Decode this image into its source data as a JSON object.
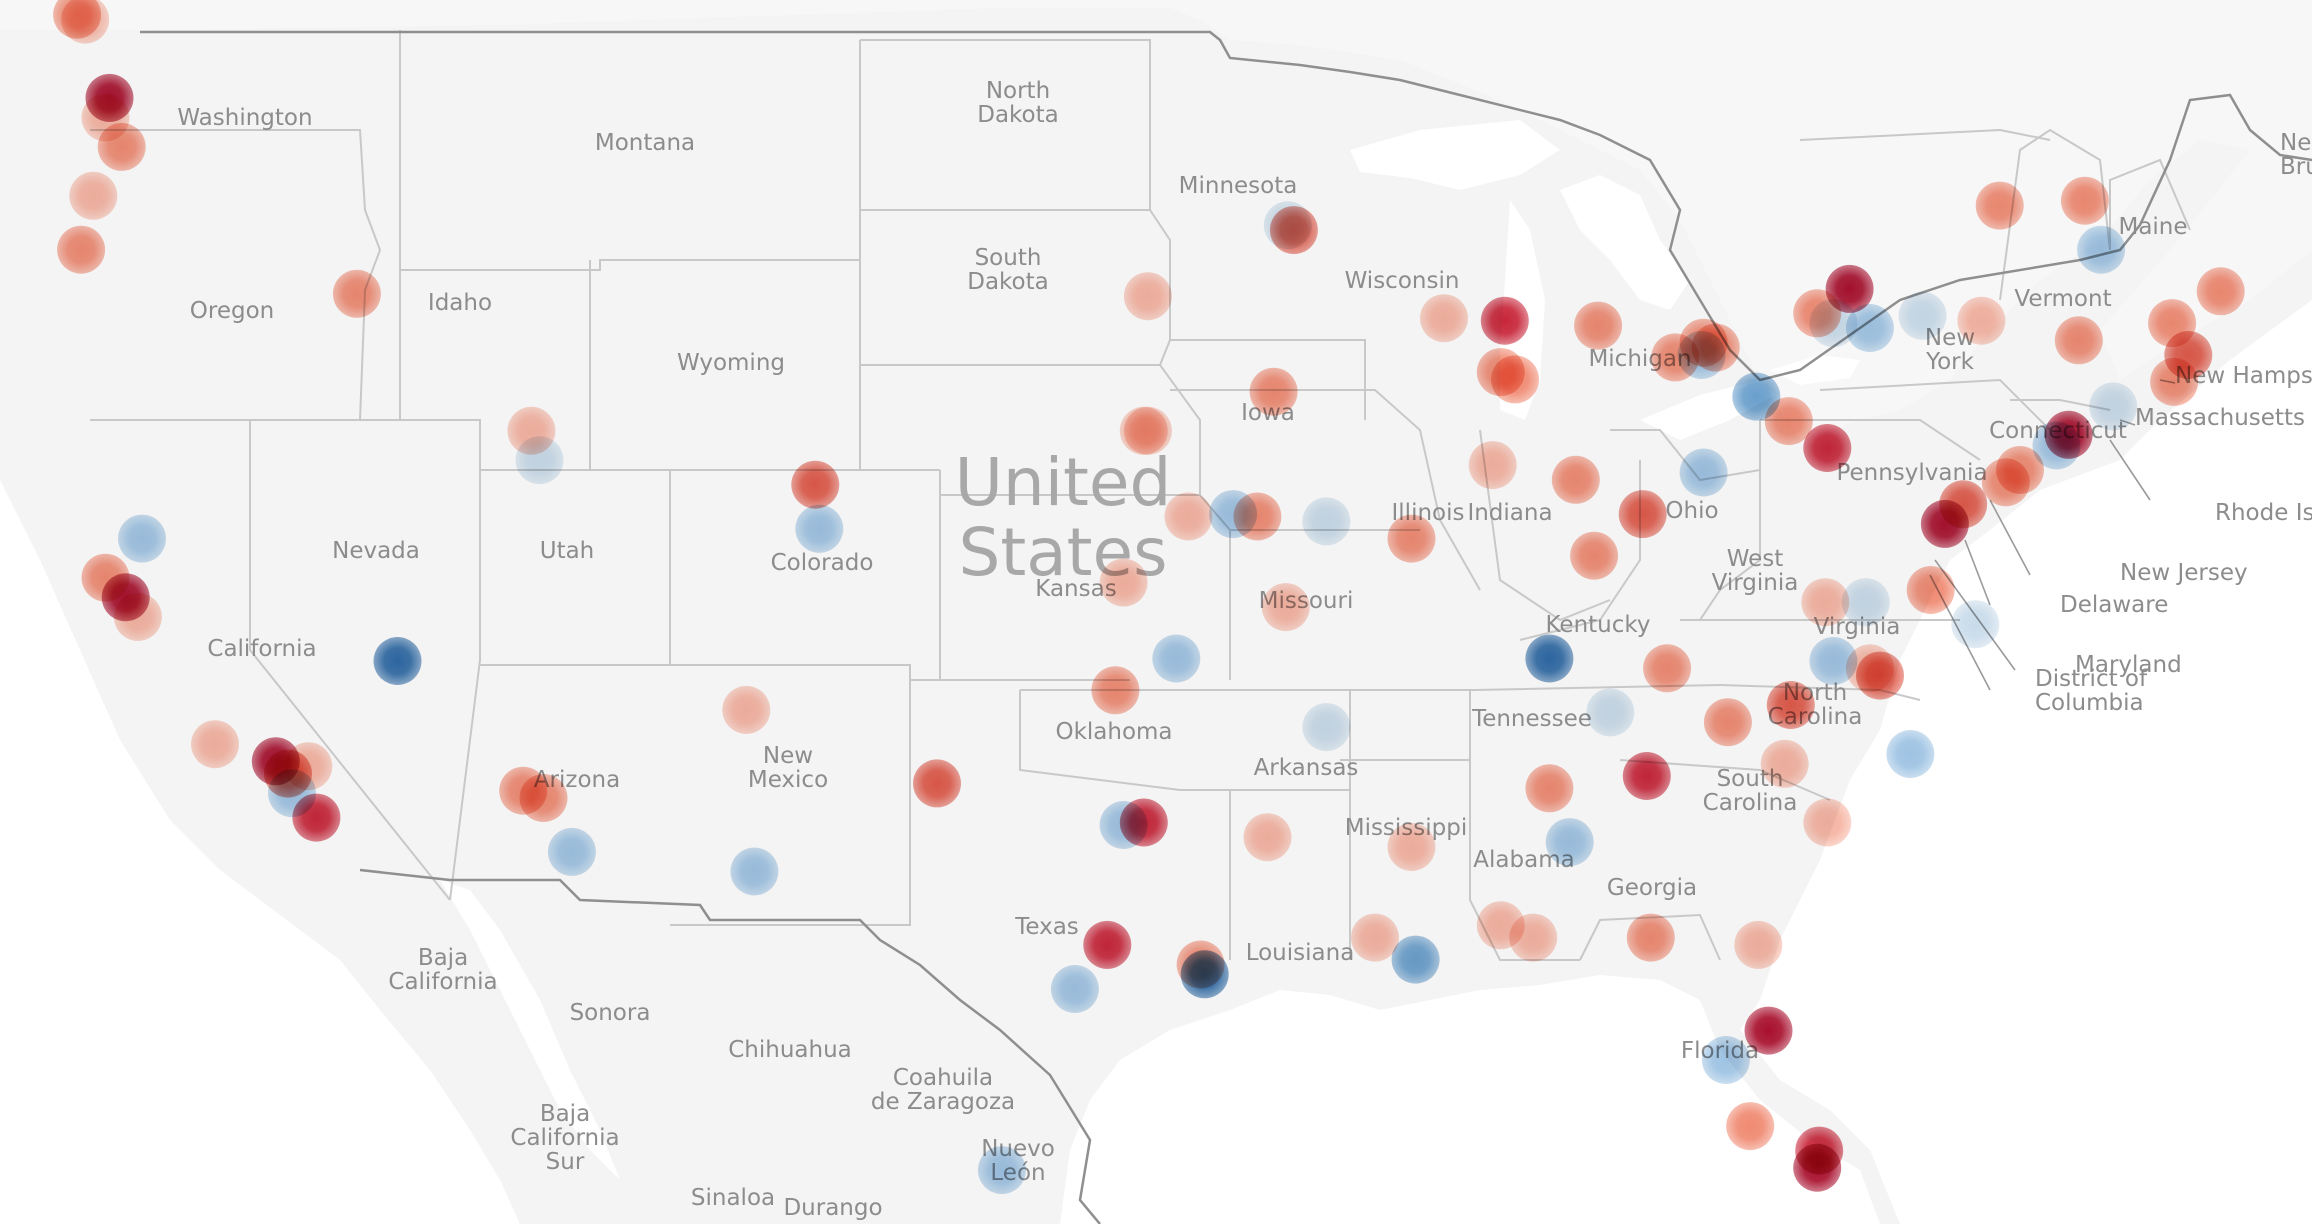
{
  "map": {
    "country_label_lines": [
      "United",
      "States"
    ],
    "state_labels": [
      {
        "name": "washington",
        "lines": [
          "Washington"
        ]
      },
      {
        "name": "oregon",
        "lines": [
          "Oregon"
        ]
      },
      {
        "name": "montana",
        "lines": [
          "Montana"
        ]
      },
      {
        "name": "north-dakota",
        "lines": [
          "North",
          "Dakota"
        ]
      },
      {
        "name": "minnesota",
        "lines": [
          "Minnesota"
        ]
      },
      {
        "name": "idaho",
        "lines": [
          "Idaho"
        ]
      },
      {
        "name": "south-dakota",
        "lines": [
          "South",
          "Dakota"
        ]
      },
      {
        "name": "wisconsin",
        "lines": [
          "Wisconsin"
        ]
      },
      {
        "name": "wyoming",
        "lines": [
          "Wyoming"
        ]
      },
      {
        "name": "michigan",
        "lines": [
          "Michigan"
        ]
      },
      {
        "name": "new-york",
        "lines": [
          "New",
          "York"
        ]
      },
      {
        "name": "vermont",
        "lines": [
          "Vermont"
        ]
      },
      {
        "name": "maine",
        "lines": [
          "Maine"
        ]
      },
      {
        "name": "iowa",
        "lines": [
          "Iowa"
        ]
      },
      {
        "name": "nevada",
        "lines": [
          "Nevada"
        ]
      },
      {
        "name": "utah",
        "lines": [
          "Utah"
        ]
      },
      {
        "name": "colorado",
        "lines": [
          "Colorado"
        ]
      },
      {
        "name": "illinois",
        "lines": [
          "Illinois"
        ]
      },
      {
        "name": "indiana",
        "lines": [
          "Indiana"
        ]
      },
      {
        "name": "ohio",
        "lines": [
          "Ohio"
        ]
      },
      {
        "name": "pennsylvania",
        "lines": [
          "Pennsylvania"
        ]
      },
      {
        "name": "connecticut",
        "lines": [
          "Connecticut"
        ]
      },
      {
        "name": "kansas",
        "lines": [
          "Kansas"
        ]
      },
      {
        "name": "missouri",
        "lines": [
          "Missouri"
        ]
      },
      {
        "name": "west-virginia",
        "lines": [
          "West",
          "Virginia"
        ]
      },
      {
        "name": "kentucky",
        "lines": [
          "Kentucky"
        ]
      },
      {
        "name": "virginia",
        "lines": [
          "Virginia"
        ]
      },
      {
        "name": "california",
        "lines": [
          "California"
        ]
      },
      {
        "name": "tennessee",
        "lines": [
          "Tennessee"
        ]
      },
      {
        "name": "north-carolina",
        "lines": [
          "North",
          "Carolina"
        ]
      },
      {
        "name": "oklahoma",
        "lines": [
          "Oklahoma"
        ]
      },
      {
        "name": "arkansas",
        "lines": [
          "Arkansas"
        ]
      },
      {
        "name": "arizona",
        "lines": [
          "Arizona"
        ]
      },
      {
        "name": "new-mexico",
        "lines": [
          "New",
          "Mexico"
        ]
      },
      {
        "name": "south-carolina",
        "lines": [
          "South",
          "Carolina"
        ]
      },
      {
        "name": "mississippi",
        "lines": [
          "Mississippi"
        ]
      },
      {
        "name": "alabama",
        "lines": [
          "Alabama"
        ]
      },
      {
        "name": "georgia",
        "lines": [
          "Georgia"
        ]
      },
      {
        "name": "texas",
        "lines": [
          "Texas"
        ]
      },
      {
        "name": "louisiana",
        "lines": [
          "Louisiana"
        ]
      },
      {
        "name": "florida",
        "lines": [
          "Florida"
        ]
      }
    ],
    "callout_labels": [
      {
        "name": "new-hampshire",
        "lines": [
          "New Hampshire"
        ]
      },
      {
        "name": "massachusetts",
        "lines": [
          "Massachusetts"
        ]
      },
      {
        "name": "rhode-island",
        "lines": [
          "Rhode Island"
        ]
      },
      {
        "name": "new-jersey",
        "lines": [
          "New Jersey"
        ]
      },
      {
        "name": "delaware",
        "lines": [
          "Delaware"
        ]
      },
      {
        "name": "maryland",
        "lines": [
          "Maryland"
        ]
      },
      {
        "name": "district-of-columbia",
        "lines": [
          "District of",
          "Columbia"
        ]
      }
    ],
    "canada_labels": [
      {
        "name": "new-brunswick",
        "lines": [
          "New",
          "Brunswick"
        ]
      }
    ],
    "mexico_labels": [
      {
        "name": "baja-california",
        "lines": [
          "Baja",
          "California"
        ]
      },
      {
        "name": "sonora",
        "lines": [
          "Sonora"
        ]
      },
      {
        "name": "chihuahua",
        "lines": [
          "Chihuahua"
        ]
      },
      {
        "name": "coahuila",
        "lines": [
          "Coahuila",
          "de Zaragoza"
        ]
      },
      {
        "name": "baja-california-sur",
        "lines": [
          "Baja",
          "California",
          "Sur"
        ]
      },
      {
        "name": "nuevo-leon",
        "lines": [
          "Nuevo",
          "León"
        ]
      },
      {
        "name": "sinaloa",
        "lines": [
          "Sinaloa"
        ]
      },
      {
        "name": "durango",
        "lines": [
          "Durango"
        ]
      }
    ],
    "palette": {
      "red_1": "#f6b3a1",
      "red_2": "#f08a72",
      "red_3": "#e05a4a",
      "red_4": "#c8263a",
      "red_5": "#a8102e",
      "blue_1": "#c9dbea",
      "blue_2": "#9ec3e3",
      "blue_3": "#6a9fcc",
      "blue_4": "#2e6aa6"
    },
    "markers": [
      {
        "lon": -123.1,
        "lat": 49.3,
        "c": "red_2"
      },
      {
        "lon": -122.9,
        "lat": 49.2,
        "c": "red_1"
      },
      {
        "lon": -122.3,
        "lat": 47.6,
        "c": "red_5"
      },
      {
        "lon": -122.4,
        "lat": 47.2,
        "c": "red_1"
      },
      {
        "lon": -122.0,
        "lat": 46.6,
        "c": "red_2"
      },
      {
        "lon": -122.7,
        "lat": 45.6,
        "c": "red_1"
      },
      {
        "lon": -123.0,
        "lat": 44.5,
        "c": "red_2"
      },
      {
        "lon": -116.2,
        "lat": 43.6,
        "c": "red_2"
      },
      {
        "lon": -111.9,
        "lat": 40.8,
        "c": "red_1"
      },
      {
        "lon": -111.7,
        "lat": 40.2,
        "c": "blue_1"
      },
      {
        "lon": -104.9,
        "lat": 39.7,
        "c": "red_3"
      },
      {
        "lon": -104.8,
        "lat": 38.8,
        "c": "blue_2"
      },
      {
        "lon": -121.5,
        "lat": 38.6,
        "c": "blue_2"
      },
      {
        "lon": -122.4,
        "lat": 37.8,
        "c": "red_2"
      },
      {
        "lon": -121.9,
        "lat": 37.4,
        "c": "red_5"
      },
      {
        "lon": -121.6,
        "lat": 37.0,
        "c": "red_1"
      },
      {
        "lon": -115.2,
        "lat": 36.1,
        "c": "blue_4"
      },
      {
        "lon": -119.7,
        "lat": 34.4,
        "c": "red_1"
      },
      {
        "lon": -118.2,
        "lat": 34.05,
        "c": "red_5"
      },
      {
        "lon": -117.9,
        "lat": 33.8,
        "c": "red_3"
      },
      {
        "lon": -117.4,
        "lat": 33.95,
        "c": "red_1"
      },
      {
        "lon": -117.2,
        "lat": 32.9,
        "c": "red_4"
      },
      {
        "lon": -117.8,
        "lat": 33.4,
        "c": "blue_2"
      },
      {
        "lon": -112.1,
        "lat": 33.45,
        "c": "red_2"
      },
      {
        "lon": -111.6,
        "lat": 33.3,
        "c": "red_2"
      },
      {
        "lon": -110.9,
        "lat": 32.2,
        "c": "blue_2"
      },
      {
        "lon": -106.6,
        "lat": 35.1,
        "c": "red_1"
      },
      {
        "lon": -106.4,
        "lat": 31.8,
        "c": "blue_2"
      },
      {
        "lon": -101.9,
        "lat": 33.6,
        "c": "red_3"
      },
      {
        "lon": -97.5,
        "lat": 35.5,
        "c": "red_2"
      },
      {
        "lon": -96.0,
        "lat": 36.15,
        "c": "blue_2"
      },
      {
        "lon": -97.3,
        "lat": 32.75,
        "c": "blue_2"
      },
      {
        "lon": -96.8,
        "lat": 32.8,
        "c": "red_4"
      },
      {
        "lon": -97.7,
        "lat": 30.3,
        "c": "red_4"
      },
      {
        "lon": -98.5,
        "lat": 29.4,
        "c": "blue_2"
      },
      {
        "lon": -95.4,
        "lat": 29.9,
        "c": "red_2"
      },
      {
        "lon": -95.3,
        "lat": 29.7,
        "c": "blue_4"
      },
      {
        "lon": -93.75,
        "lat": 32.5,
        "c": "red_1"
      },
      {
        "lon": -92.3,
        "lat": 34.75,
        "c": "blue_1"
      },
      {
        "lon": -91.1,
        "lat": 30.45,
        "c": "red_1"
      },
      {
        "lon": -90.1,
        "lat": 30.0,
        "c": "blue_3"
      },
      {
        "lon": -90.2,
        "lat": 32.3,
        "c": "red_1"
      },
      {
        "lon": -97.3,
        "lat": 37.7,
        "c": "red_1"
      },
      {
        "lon": -95.7,
        "lat": 39.05,
        "c": "red_1"
      },
      {
        "lon": -94.6,
        "lat": 39.1,
        "c": "blue_2"
      },
      {
        "lon": -94.0,
        "lat": 39.05,
        "c": "red_2"
      },
      {
        "lon": -92.3,
        "lat": 38.95,
        "c": "blue_1"
      },
      {
        "lon": -93.3,
        "lat": 37.2,
        "c": "red_1"
      },
      {
        "lon": -90.2,
        "lat": 38.6,
        "c": "red_2"
      },
      {
        "lon": -96.7,
        "lat": 40.8,
        "c": "red_1"
      },
      {
        "lon": -96.7,
        "lat": 43.55,
        "c": "red_1"
      },
      {
        "lon": -93.6,
        "lat": 41.6,
        "c": "red_2"
      },
      {
        "lon": -93.25,
        "lat": 45.0,
        "c": "blue_1"
      },
      {
        "lon": -93.1,
        "lat": 44.9,
        "c": "red_3"
      },
      {
        "lon": -89.4,
        "lat": 43.1,
        "c": "red_1"
      },
      {
        "lon": -87.9,
        "lat": 43.05,
        "c": "red_4"
      },
      {
        "lon": -88.0,
        "lat": 42.0,
        "c": "red_2"
      },
      {
        "lon": -87.65,
        "lat": 41.85,
        "c": "red_2"
      },
      {
        "lon": -88.2,
        "lat": 40.1,
        "c": "red_1"
      },
      {
        "lon": -86.15,
        "lat": 39.8,
        "c": "red_2"
      },
      {
        "lon": -85.7,
        "lat": 38.25,
        "c": "red_2"
      },
      {
        "lon": -84.5,
        "lat": 39.1,
        "c": "red_3"
      },
      {
        "lon": -83.0,
        "lat": 39.95,
        "c": "blue_2"
      },
      {
        "lon": -81.7,
        "lat": 41.5,
        "c": "blue_3"
      },
      {
        "lon": -83.05,
        "lat": 42.35,
        "c": "blue_2"
      },
      {
        "lon": -83.7,
        "lat": 42.3,
        "c": "red_2"
      },
      {
        "lon": -85.6,
        "lat": 42.95,
        "c": "red_2"
      },
      {
        "lon": -83.0,
        "lat": 42.6,
        "c": "red_2"
      },
      {
        "lon": -82.7,
        "lat": 42.5,
        "c": "red_2"
      },
      {
        "lon": -79.95,
        "lat": 40.45,
        "c": "red_4"
      },
      {
        "lon": -80.9,
        "lat": 41.0,
        "c": "red_2"
      },
      {
        "lon": -79.4,
        "lat": 43.7,
        "c": "red_5"
      },
      {
        "lon": -80.2,
        "lat": 43.2,
        "c": "red_2"
      },
      {
        "lon": -79.8,
        "lat": 43.0,
        "c": "blue_1"
      },
      {
        "lon": -78.9,
        "lat": 42.9,
        "c": "blue_2"
      },
      {
        "lon": -77.6,
        "lat": 43.15,
        "c": "blue_1"
      },
      {
        "lon": -76.15,
        "lat": 43.05,
        "c": "red_1"
      },
      {
        "lon": -75.7,
        "lat": 45.4,
        "c": "red_2"
      },
      {
        "lon": -73.6,
        "lat": 45.5,
        "c": "red_2"
      },
      {
        "lon": -73.75,
        "lat": 42.65,
        "c": "red_2"
      },
      {
        "lon": -73.2,
        "lat": 44.5,
        "c": "blue_2"
      },
      {
        "lon": -71.45,
        "lat": 43.0,
        "c": "red_2"
      },
      {
        "lon": -71.05,
        "lat": 42.35,
        "c": "red_3"
      },
      {
        "lon": -71.4,
        "lat": 41.8,
        "c": "red_2"
      },
      {
        "lon": -70.25,
        "lat": 43.65,
        "c": "red_2"
      },
      {
        "lon": -72.9,
        "lat": 41.3,
        "c": "blue_1"
      },
      {
        "lon": -74.0,
        "lat": 40.72,
        "c": "red_5"
      },
      {
        "lon": -74.3,
        "lat": 40.5,
        "c": "blue_2"
      },
      {
        "lon": -75.2,
        "lat": 40.0,
        "c": "red_2"
      },
      {
        "lon": -75.55,
        "lat": 39.75,
        "c": "red_2"
      },
      {
        "lon": -76.6,
        "lat": 39.3,
        "c": "red_3"
      },
      {
        "lon": -77.05,
        "lat": 38.9,
        "c": "red_5"
      },
      {
        "lon": -77.4,
        "lat": 37.55,
        "c": "red_2"
      },
      {
        "lon": -79.0,
        "lat": 37.3,
        "c": "blue_1"
      },
      {
        "lon": -76.3,
        "lat": 36.85,
        "c": "blue_1"
      },
      {
        "lon": -80.0,
        "lat": 37.3,
        "c": "red_1"
      },
      {
        "lon": -86.8,
        "lat": 36.15,
        "c": "blue_4"
      },
      {
        "lon": -85.3,
        "lat": 35.05,
        "c": "blue_1"
      },
      {
        "lon": -83.9,
        "lat": 35.95,
        "c": "red_2"
      },
      {
        "lon": -78.65,
        "lat": 35.8,
        "c": "red_3"
      },
      {
        "lon": -79.8,
        "lat": 36.1,
        "c": "blue_2"
      },
      {
        "lon": -80.85,
        "lat": 35.2,
        "c": "red_3"
      },
      {
        "lon": -78.9,
        "lat": 35.95,
        "c": "red_1"
      },
      {
        "lon": -77.9,
        "lat": 34.2,
        "c": "blue_2"
      },
      {
        "lon": -82.4,
        "lat": 34.85,
        "c": "red_2"
      },
      {
        "lon": -81.0,
        "lat": 34.0,
        "c": "red_1"
      },
      {
        "lon": -79.95,
        "lat": 32.8,
        "c": "red_1"
      },
      {
        "lon": -84.4,
        "lat": 33.75,
        "c": "red_4"
      },
      {
        "lon": -86.8,
        "lat": 33.5,
        "c": "red_2"
      },
      {
        "lon": -86.3,
        "lat": 32.4,
        "c": "blue_2"
      },
      {
        "lon": -88.0,
        "lat": 30.7,
        "c": "red_1"
      },
      {
        "lon": -87.2,
        "lat": 30.45,
        "c": "red_1"
      },
      {
        "lon": -84.3,
        "lat": 30.45,
        "c": "red_2"
      },
      {
        "lon": -81.65,
        "lat": 30.3,
        "c": "red_1"
      },
      {
        "lon": -81.4,
        "lat": 28.55,
        "c": "red_5"
      },
      {
        "lon": -82.45,
        "lat": 27.95,
        "c": "blue_2"
      },
      {
        "lon": -81.85,
        "lat": 26.6,
        "c": "red_2"
      },
      {
        "lon": -80.15,
        "lat": 26.1,
        "c": "red_4"
      },
      {
        "lon": -80.2,
        "lat": 25.75,
        "c": "red_5"
      },
      {
        "lon": -100.3,
        "lat": 25.7,
        "c": "blue_2"
      },
      {
        "lon": -96.8,
        "lat": 40.8,
        "c": "red_1"
      }
    ]
  }
}
